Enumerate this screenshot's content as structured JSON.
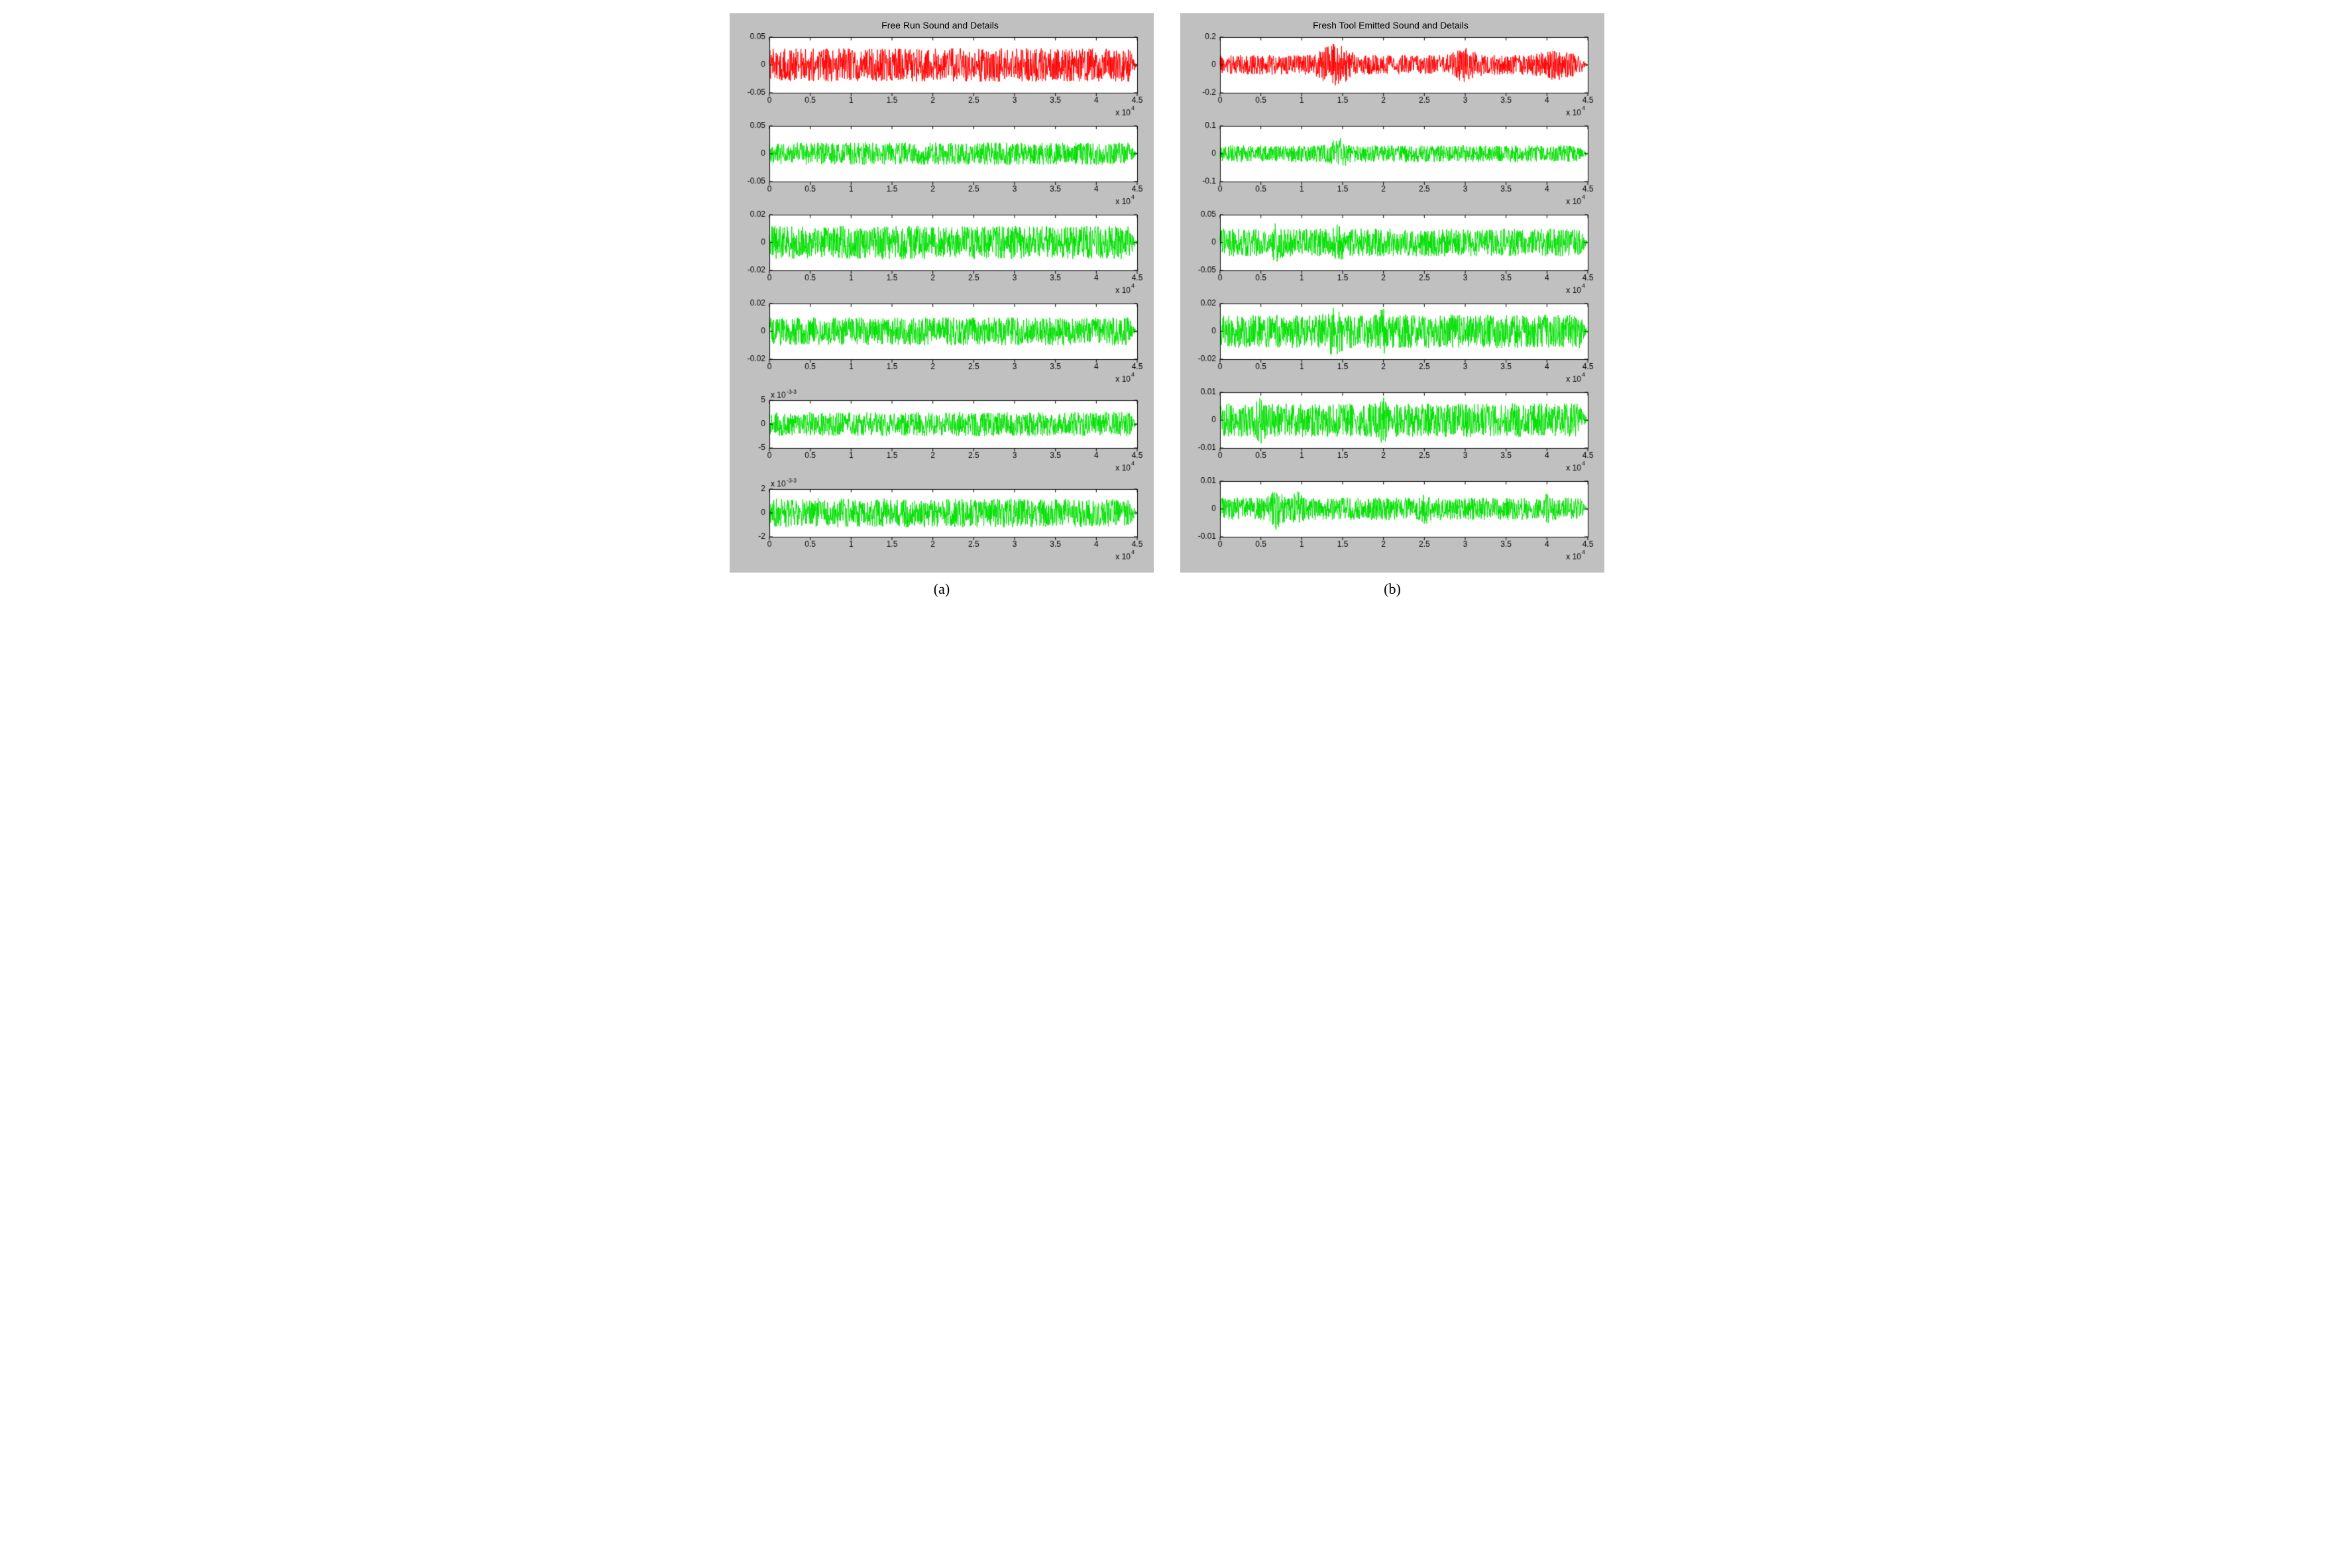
{
  "figure": {
    "panel_bg": "#c0c0c0",
    "plot_bg": "#ffffff",
    "axis_color": "#000000",
    "tick_font_size": 12,
    "title_font_size": 14,
    "caption_font_size": 22,
    "x_exp_label": "x 10",
    "x_exp_power": "4"
  },
  "panels": [
    {
      "title": "Free Run Sound and Details",
      "caption": "(a)",
      "subplots": [
        {
          "color": "#ff0000",
          "xlim": [
            0,
            4.5
          ],
          "xticks": [
            0,
            0.5,
            1,
            1.5,
            2,
            2.5,
            3,
            3.5,
            4,
            4.5
          ],
          "ylim": [
            -0.05,
            0.05
          ],
          "yticks": [
            -0.05,
            0,
            0.05
          ],
          "ytick_labels": [
            "-0.05",
            "0",
            "0.05"
          ],
          "amp": 0.03,
          "y_exp": null,
          "seed": 11,
          "bursts": []
        },
        {
          "color": "#00e000",
          "xlim": [
            0,
            4.5
          ],
          "xticks": [
            0,
            0.5,
            1,
            1.5,
            2,
            2.5,
            3,
            3.5,
            4,
            4.5
          ],
          "ylim": [
            -0.05,
            0.05
          ],
          "yticks": [
            -0.05,
            0,
            0.05
          ],
          "ytick_labels": [
            "-0.05",
            "0",
            "0.05"
          ],
          "amp": 0.02,
          "y_exp": null,
          "seed": 12,
          "bursts": []
        },
        {
          "color": "#00e000",
          "xlim": [
            0,
            4.5
          ],
          "xticks": [
            0,
            0.5,
            1,
            1.5,
            2,
            2.5,
            3,
            3.5,
            4,
            4.5
          ],
          "ylim": [
            -0.02,
            0.02
          ],
          "yticks": [
            -0.02,
            0,
            0.02
          ],
          "ytick_labels": [
            "-0.02",
            "0",
            "0.02"
          ],
          "amp": 0.012,
          "y_exp": null,
          "seed": 13,
          "bursts": []
        },
        {
          "color": "#00e000",
          "xlim": [
            0,
            4.5
          ],
          "xticks": [
            0,
            0.5,
            1,
            1.5,
            2,
            2.5,
            3,
            3.5,
            4,
            4.5
          ],
          "ylim": [
            -0.02,
            0.02
          ],
          "yticks": [
            -0.02,
            0,
            0.02
          ],
          "ytick_labels": [
            "-0.02",
            "0",
            "0.02"
          ],
          "amp": 0.01,
          "y_exp": null,
          "seed": 14,
          "bursts": []
        },
        {
          "color": "#00e000",
          "xlim": [
            0,
            4.5
          ],
          "xticks": [
            0,
            0.5,
            1,
            1.5,
            2,
            2.5,
            3,
            3.5,
            4,
            4.5
          ],
          "ylim": [
            -5,
            5
          ],
          "yticks": [
            -5,
            0,
            5
          ],
          "ytick_labels": [
            "-5",
            "0",
            "5"
          ],
          "amp": 2.5,
          "y_exp": "-3",
          "seed": 15,
          "bursts": []
        },
        {
          "color": "#00e000",
          "xlim": [
            0,
            4.5
          ],
          "xticks": [
            0,
            0.5,
            1,
            1.5,
            2,
            2.5,
            3,
            3.5,
            4,
            4.5
          ],
          "ylim": [
            -2,
            2
          ],
          "yticks": [
            -2,
            0,
            2
          ],
          "ytick_labels": [
            "-2",
            "0",
            "2"
          ],
          "amp": 1.2,
          "y_exp": "-3",
          "seed": 16,
          "bursts": []
        }
      ]
    },
    {
      "title": "Fresh Tool Emitted Sound and Details",
      "caption": "(b)",
      "subplots": [
        {
          "color": "#ff0000",
          "xlim": [
            0,
            4.5
          ],
          "xticks": [
            0,
            0.5,
            1,
            1.5,
            2,
            2.5,
            3,
            3.5,
            4,
            4.5
          ],
          "ylim": [
            -0.2,
            0.2
          ],
          "yticks": [
            -0.2,
            0,
            0.2
          ],
          "ytick_labels": [
            "-0.2",
            "0",
            "0.2"
          ],
          "amp": 0.07,
          "y_exp": null,
          "seed": 21,
          "bursts": [
            {
              "x": 1.4,
              "w": 0.2,
              "a": 2.2
            },
            {
              "x": 3.0,
              "w": 0.15,
              "a": 1.8
            },
            {
              "x": 4.1,
              "w": 0.2,
              "a": 1.6
            }
          ]
        },
        {
          "color": "#00e000",
          "xlim": [
            0,
            4.5
          ],
          "xticks": [
            0,
            0.5,
            1,
            1.5,
            2,
            2.5,
            3,
            3.5,
            4,
            4.5
          ],
          "ylim": [
            -0.1,
            0.1
          ],
          "yticks": [
            -0.1,
            0,
            0.1
          ],
          "ytick_labels": [
            "-0.1",
            "0",
            "0.1"
          ],
          "amp": 0.03,
          "y_exp": null,
          "seed": 22,
          "bursts": [
            {
              "x": 1.45,
              "w": 0.1,
              "a": 2.0
            }
          ]
        },
        {
          "color": "#00e000",
          "xlim": [
            0,
            4.5
          ],
          "xticks": [
            0,
            0.5,
            1,
            1.5,
            2,
            2.5,
            3,
            3.5,
            4,
            4.5
          ],
          "ylim": [
            -0.05,
            0.05
          ],
          "yticks": [
            -0.05,
            0,
            0.05
          ],
          "ytick_labels": [
            "-0.05",
            "0",
            "0.05"
          ],
          "amp": 0.025,
          "y_exp": null,
          "seed": 23,
          "bursts": [
            {
              "x": 0.7,
              "w": 0.05,
              "a": 1.6
            },
            {
              "x": 1.45,
              "w": 0.05,
              "a": 1.6
            }
          ]
        },
        {
          "color": "#00e000",
          "xlim": [
            0,
            4.5
          ],
          "xticks": [
            0,
            0.5,
            1,
            1.5,
            2,
            2.5,
            3,
            3.5,
            4,
            4.5
          ],
          "ylim": [
            -0.02,
            0.02
          ],
          "yticks": [
            -0.02,
            0,
            0.02
          ],
          "ytick_labels": [
            "-0.02",
            "0",
            "0.02"
          ],
          "amp": 0.012,
          "y_exp": null,
          "seed": 24,
          "bursts": [
            {
              "x": 1.4,
              "w": 0.1,
              "a": 1.5
            },
            {
              "x": 2.0,
              "w": 0.05,
              "a": 1.4
            }
          ]
        },
        {
          "color": "#00e000",
          "xlim": [
            0,
            4.5
          ],
          "xticks": [
            0,
            0.5,
            1,
            1.5,
            2,
            2.5,
            3,
            3.5,
            4,
            4.5
          ],
          "ylim": [
            -0.01,
            0.01
          ],
          "yticks": [
            -0.01,
            0,
            0.01
          ],
          "ytick_labels": [
            "-0.01",
            "0",
            "0.01"
          ],
          "amp": 0.006,
          "y_exp": null,
          "seed": 25,
          "bursts": [
            {
              "x": 0.5,
              "w": 0.05,
              "a": 1.4
            },
            {
              "x": 2.0,
              "w": 0.05,
              "a": 1.5
            }
          ]
        },
        {
          "color": "#00e000",
          "xlim": [
            0,
            4.5
          ],
          "xticks": [
            0,
            0.5,
            1,
            1.5,
            2,
            2.5,
            3,
            3.5,
            4,
            4.5
          ],
          "ylim": [
            -0.01,
            0.01
          ],
          "yticks": [
            -0.01,
            0,
            0.01
          ],
          "ytick_labels": [
            "-0.01",
            "0",
            "0.01"
          ],
          "amp": 0.004,
          "y_exp": null,
          "seed": 26,
          "bursts": [
            {
              "x": 0.7,
              "w": 0.08,
              "a": 2.0
            },
            {
              "x": 0.95,
              "w": 0.05,
              "a": 1.8
            },
            {
              "x": 2.5,
              "w": 0.05,
              "a": 1.5
            },
            {
              "x": 4.0,
              "w": 0.05,
              "a": 1.4
            }
          ]
        }
      ]
    }
  ]
}
